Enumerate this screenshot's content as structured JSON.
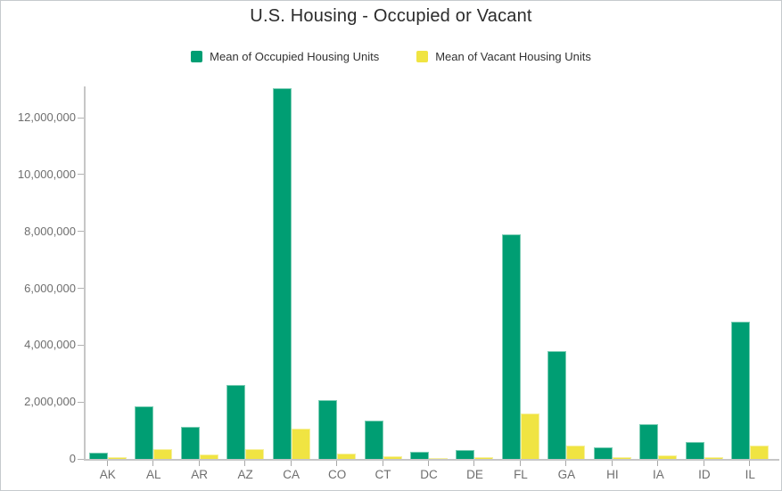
{
  "title": "U.S. Housing - Occupied or Vacant",
  "legend": {
    "items": [
      {
        "label": "Mean of Occupied Housing Units",
        "color": "#009E73"
      },
      {
        "label": "Mean of Vacant Housing Units",
        "color": "#F0E442"
      }
    ]
  },
  "colors": {
    "occupied": "#009E73",
    "vacant": "#F0E442",
    "axis": "#c6c6c6",
    "axis_text": "#6e6e6e",
    "title_text": "#2b2b2b"
  },
  "chart_data": {
    "type": "bar",
    "title": "U.S. Housing - Occupied or Vacant",
    "xlabel": "",
    "ylabel": "",
    "grid": false,
    "legend_position": "top",
    "categories": [
      "AK",
      "AL",
      "AR",
      "AZ",
      "CA",
      "CO",
      "CT",
      "DC",
      "DE",
      "FL",
      "GA",
      "HI",
      "IA",
      "ID",
      "IL"
    ],
    "series": [
      {
        "name": "Mean of Occupied Housing Units",
        "color": "#009E73",
        "values": [
          220000,
          1860000,
          1130000,
          2600000,
          13050000,
          2080000,
          1340000,
          250000,
          320000,
          7900000,
          3780000,
          410000,
          1220000,
          600000,
          4830000
        ]
      },
      {
        "name": "Mean of Vacant Housing Units",
        "color": "#F0E442",
        "values": [
          60000,
          330000,
          170000,
          330000,
          1060000,
          180000,
          100000,
          40000,
          70000,
          1590000,
          470000,
          70000,
          110000,
          60000,
          460000
        ]
      }
    ],
    "ylim": [
      0,
      13100000
    ],
    "ytick_step": 2000000,
    "ytick_labels": [
      "0",
      "2,000,000",
      "4,000,000",
      "6,000,000",
      "8,000,000",
      "10,000,000",
      "12,000,000"
    ]
  }
}
